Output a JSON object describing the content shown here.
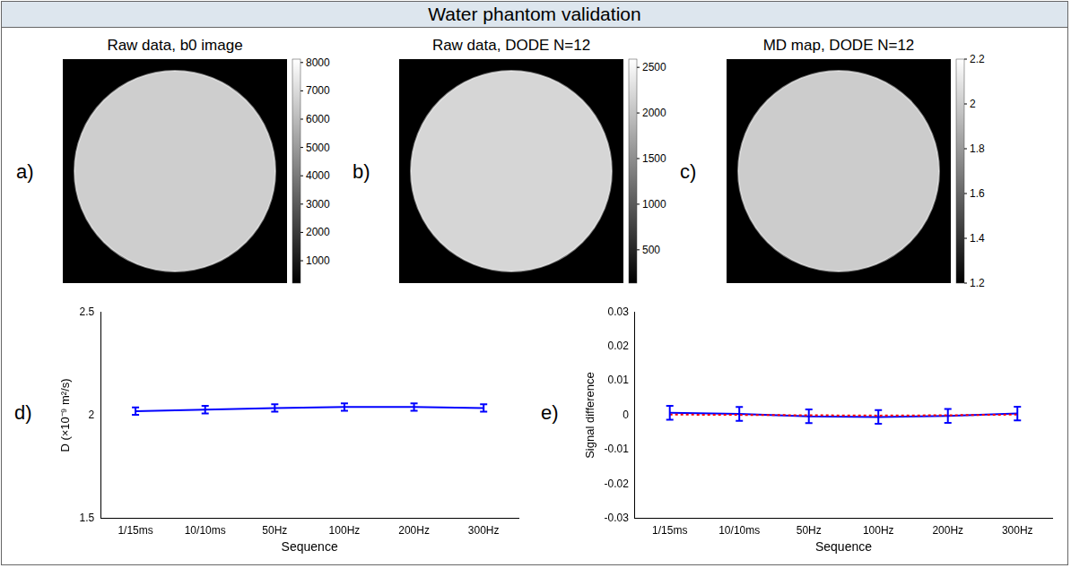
{
  "title": "Water phantom validation",
  "images": [
    {
      "panel_label": "a)",
      "title": "Raw data, b0 image",
      "value": 6600,
      "colorbar": {
        "range": [
          210,
          8120
        ],
        "ticks": [
          1000,
          2000,
          3000,
          4000,
          5000,
          6000,
          7000,
          8000
        ]
      }
    },
    {
      "panel_label": "b)",
      "title": "Raw data, DODE N=12",
      "value": 2200,
      "colorbar": {
        "range": [
          135,
          2590
        ],
        "ticks": [
          500,
          1000,
          1500,
          2000,
          2500
        ]
      }
    },
    {
      "panel_label": "c)",
      "title": "MD map, DODE N=12",
      "value": 2.0,
      "colorbar": {
        "range": [
          1.2,
          2.2
        ],
        "ticks": [
          1.2,
          1.4,
          1.6,
          1.8,
          2,
          2.2
        ]
      }
    }
  ],
  "chart_data": [
    {
      "type": "line",
      "panel_label": "d)",
      "categories": [
        "1/15ms",
        "10/10ms",
        "50Hz",
        "100Hz",
        "200Hz",
        "300Hz"
      ],
      "x_label": "Sequence",
      "y_label": "D (×10⁻⁹ m²/s)",
      "ylim": [
        1.5,
        2.5
      ],
      "yticks": [
        1.5,
        2,
        2.5
      ],
      "grid": false,
      "series": [
        {
          "color": "#0000ff",
          "line_style": "solid",
          "marker": "none",
          "values": [
            2.02,
            2.027,
            2.035,
            2.04,
            2.04,
            2.035
          ],
          "errors": [
            0.018,
            0.018,
            0.018,
            0.018,
            0.018,
            0.018
          ]
        }
      ]
    },
    {
      "type": "line",
      "panel_label": "e)",
      "categories": [
        "1/15ms",
        "10/10ms",
        "50Hz",
        "100Hz",
        "200Hz",
        "300Hz"
      ],
      "x_label": "Sequence",
      "y_label": "Signal difference",
      "ylim": [
        -0.03,
        0.03
      ],
      "yticks": [
        -0.03,
        -0.02,
        -0.01,
        0,
        0.01,
        0.02,
        0.03
      ],
      "grid": false,
      "series": [
        {
          "color": "#ff0000",
          "line_style": "dotted",
          "marker": "none",
          "values": [
            0.0002,
            0.0001,
            0.0,
            -0.0001,
            0.0,
            0.0002
          ]
        },
        {
          "color": "#0000ff",
          "line_style": "solid",
          "marker": "none",
          "values": [
            0.0007,
            0.0004,
            -0.0003,
            -0.0005,
            -0.0002,
            0.0005
          ],
          "errors": [
            0.002,
            0.002,
            0.002,
            0.002,
            0.002,
            0.002
          ]
        }
      ]
    }
  ]
}
